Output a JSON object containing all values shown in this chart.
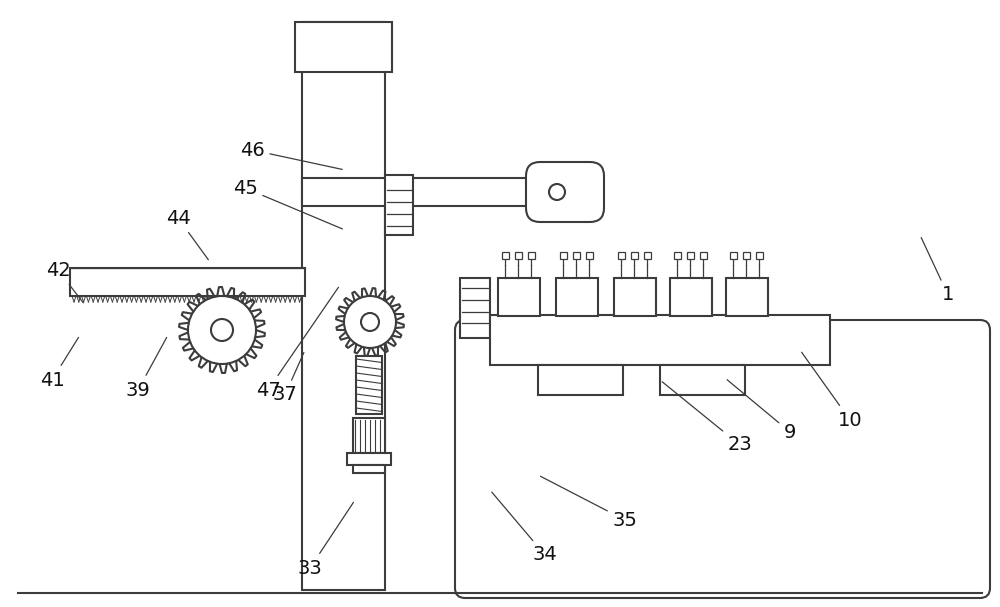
{
  "bg_color": "#ffffff",
  "lc": "#3c3c3c",
  "lw": 1.5,
  "tlw": 0.9,
  "fig_w": 10.0,
  "fig_h": 6.07,
  "annotations": [
    [
      "33",
      310,
      568,
      355,
      500
    ],
    [
      "34",
      545,
      555,
      490,
      490
    ],
    [
      "35",
      625,
      520,
      538,
      475
    ],
    [
      "37",
      285,
      395,
      305,
      350
    ],
    [
      "39",
      138,
      390,
      168,
      335
    ],
    [
      "41",
      52,
      380,
      80,
      335
    ],
    [
      "42",
      58,
      270,
      85,
      305
    ],
    [
      "44",
      178,
      218,
      210,
      262
    ],
    [
      "45",
      245,
      188,
      345,
      230
    ],
    [
      "46",
      252,
      150,
      345,
      170
    ],
    [
      "47",
      268,
      390,
      340,
      285
    ],
    [
      "23",
      740,
      445,
      660,
      380
    ],
    [
      "9",
      790,
      432,
      725,
      378
    ],
    [
      "10",
      850,
      420,
      800,
      350
    ],
    [
      "1",
      948,
      295,
      920,
      235
    ]
  ]
}
